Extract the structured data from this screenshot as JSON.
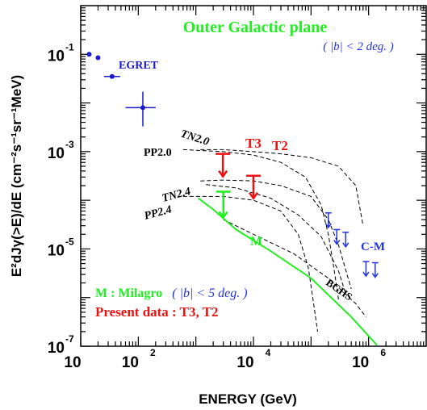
{
  "chart_data": {
    "type": "line",
    "title": "Outer Galactic plane",
    "subtitle": "( |b| < 2 deg. )",
    "xlabel": "ENERGY (GeV)",
    "ylabel": "E²dJγ(>E)/dE (cm⁻²s⁻¹sr⁻¹MeV)",
    "xscale": "log",
    "yscale": "log",
    "xlim": [
      10,
      10000000
    ],
    "ylim": [
      1e-07,
      1
    ],
    "x_ticks": [
      {
        "value": 10,
        "base": "10",
        "exp": ""
      },
      {
        "value": 100,
        "base": "10",
        "exp": "2"
      },
      {
        "value": 10000,
        "base": "10",
        "exp": "4"
      },
      {
        "value": 1000000,
        "base": "10",
        "exp": "6"
      }
    ],
    "y_ticks": [
      {
        "value": 0.1,
        "base": "10",
        "exp": "-1"
      },
      {
        "value": 0.001,
        "base": "10",
        "exp": "-3"
      },
      {
        "value": 1e-05,
        "base": "10",
        "exp": "-5"
      },
      {
        "value": 1e-07,
        "base": "10",
        "exp": "-7"
      }
    ],
    "labels": {
      "egret": "EGRET",
      "t3": "T3",
      "t2": "T2",
      "m": "M",
      "cm": "C-M",
      "tn20": "TN2.0",
      "pp20": "PP2.0",
      "tn24": "TN2.4",
      "pp24": "PP2.4",
      "bghs": "BGHS",
      "milagro_note_a": "M : Milagro",
      "milagro_note_b": "( |b| < 5 deg. )",
      "present": "Present data : T3, T2"
    },
    "colors": {
      "title": "#22ee22",
      "egret": "#1a1acc",
      "present": "#ee1111",
      "milagro": "#22ee22",
      "cm": "#2233dd",
      "models": "#000000"
    },
    "egret": [
      {
        "x": 14,
        "y": 0.1
      },
      {
        "x": 20,
        "y": 0.085
      },
      {
        "x": 35,
        "y": 0.035
      },
      {
        "x": 120,
        "y": 0.008,
        "xlo": 60,
        "xhi": 200,
        "ylo": 0.0033,
        "yhi": 0.017
      }
    ],
    "upper_limits": [
      {
        "name": "T3",
        "x": 2950,
        "y": 0.0009
      },
      {
        "name": "T2",
        "x": 10000,
        "y": 0.00032
      },
      {
        "name": "M",
        "x": 3000,
        "y": 0.00015
      }
    ],
    "cm_limits": [
      {
        "x": 200000,
        "y": 5.5e-05
      },
      {
        "x": 280000,
        "y": 2.5e-05
      },
      {
        "x": 400000,
        "y": 2.2e-05
      },
      {
        "x": 900000,
        "y": 5.5e-06
      },
      {
        "x": 1300000,
        "y": 5.2e-06
      }
    ],
    "milagro_curve": [
      {
        "x": 1100,
        "y": 0.00011
      },
      {
        "x": 2000,
        "y": 6.5e-05
      },
      {
        "x": 5000,
        "y": 2.5e-05
      },
      {
        "x": 20000,
        "y": 9e-06
      },
      {
        "x": 100000,
        "y": 2.5e-06
      },
      {
        "x": 500000,
        "y": 4e-07
      },
      {
        "x": 1400000,
        "y": 1.05e-07
      }
    ],
    "model_curves": [
      {
        "name": "TN2.0",
        "points": [
          [
            1200,
            0.0011
          ],
          [
            3000,
            0.0011
          ],
          [
            10000,
            0.001
          ],
          [
            30000,
            0.0009
          ],
          [
            100000,
            0.00075
          ],
          [
            300000,
            0.0005
          ],
          [
            600000,
            0.0002
          ],
          [
            800000,
            3e-05
          ]
        ]
      },
      {
        "name": "PP2.0",
        "points": [
          [
            600,
            0.0011
          ],
          [
            3000,
            0.001
          ],
          [
            10000,
            0.00085
          ],
          [
            30000,
            0.0006
          ],
          [
            80000,
            0.0003
          ],
          [
            150000,
            8e-05
          ],
          [
            200000,
            2e-05
          ],
          [
            250000,
            4e-06
          ],
          [
            300000,
            9e-07
          ]
        ]
      },
      {
        "name": "TN2.4",
        "points": [
          [
            1200,
            0.00025
          ],
          [
            3000,
            0.00026
          ],
          [
            10000,
            0.00025
          ],
          [
            30000,
            0.0002
          ],
          [
            100000,
            0.00012
          ],
          [
            200000,
            4e-05
          ],
          [
            300000,
            1.2e-05
          ],
          [
            500000,
            1.5e-06
          ]
        ]
      },
      {
        "name": "PP2.4",
        "points": [
          [
            600,
            0.00012
          ],
          [
            3000,
            0.00012
          ],
          [
            10000,
            0.0001
          ],
          [
            30000,
            6e-05
          ],
          [
            60000,
            2e-05
          ],
          [
            90000,
            4e-06
          ],
          [
            110000,
            8e-07
          ],
          [
            130000,
            2e-07
          ]
        ]
      },
      {
        "name": "C-M model",
        "points": [
          [
            1500,
            0.00021
          ],
          [
            5000,
            0.00018
          ],
          [
            20000,
            0.00011
          ],
          [
            60000,
            5e-05
          ],
          [
            150000,
            1.8e-05
          ],
          [
            300000,
            3.5e-06
          ],
          [
            400000,
            1.2e-06
          ]
        ]
      },
      {
        "name": "BGHS",
        "points": [
          [
            3000,
            4e-05
          ],
          [
            10000,
            2e-05
          ],
          [
            50000,
            8e-06
          ],
          [
            200000,
            2.5e-06
          ],
          [
            600000,
            7.5e-07
          ],
          [
            900000,
            4e-07
          ]
        ]
      }
    ]
  }
}
